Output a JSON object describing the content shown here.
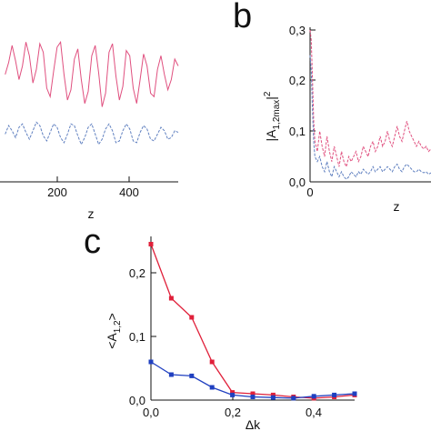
{
  "chart_data": [
    {
      "panel": "a",
      "type": "line",
      "xlabel": "z",
      "x_ticks": [
        "200",
        "400"
      ],
      "xlim": [
        0,
        500
      ],
      "series": [
        {
          "color": "#e0507f",
          "style": "solid",
          "x": [
            0,
            10,
            20,
            30,
            40,
            50,
            60,
            70,
            80,
            90,
            100,
            110,
            120,
            130,
            140,
            150,
            160,
            170,
            180,
            190,
            200,
            210,
            220,
            230,
            240,
            250,
            260,
            270,
            280,
            290,
            300,
            310,
            320,
            330,
            340,
            350,
            360,
            370,
            380,
            390,
            400,
            410,
            420,
            430,
            440,
            450,
            460,
            470,
            480,
            490,
            500
          ],
          "y": [
            0.55,
            0.62,
            0.72,
            0.63,
            0.52,
            0.6,
            0.74,
            0.66,
            0.5,
            0.58,
            0.73,
            0.68,
            0.47,
            0.42,
            0.57,
            0.71,
            0.74,
            0.55,
            0.4,
            0.46,
            0.64,
            0.7,
            0.52,
            0.38,
            0.45,
            0.66,
            0.72,
            0.56,
            0.36,
            0.44,
            0.68,
            0.73,
            0.54,
            0.4,
            0.48,
            0.69,
            0.66,
            0.47,
            0.38,
            0.52,
            0.67,
            0.6,
            0.44,
            0.42,
            0.58,
            0.66,
            0.55,
            0.46,
            0.52,
            0.64,
            0.6
          ]
        },
        {
          "color": "#6080c0",
          "style": "dashed",
          "x": [
            0,
            10,
            20,
            30,
            40,
            50,
            60,
            70,
            80,
            90,
            100,
            110,
            120,
            130,
            140,
            150,
            160,
            170,
            180,
            190,
            200,
            210,
            220,
            230,
            240,
            250,
            260,
            270,
            280,
            290,
            300,
            310,
            320,
            330,
            340,
            350,
            360,
            370,
            380,
            390,
            400,
            410,
            420,
            430,
            440,
            450,
            460,
            470,
            480,
            490,
            500
          ],
          "y": [
            0.2,
            0.25,
            0.22,
            0.18,
            0.24,
            0.26,
            0.21,
            0.17,
            0.22,
            0.27,
            0.25,
            0.19,
            0.16,
            0.21,
            0.26,
            0.24,
            0.18,
            0.15,
            0.2,
            0.26,
            0.25,
            0.19,
            0.14,
            0.18,
            0.24,
            0.26,
            0.2,
            0.14,
            0.17,
            0.23,
            0.26,
            0.22,
            0.15,
            0.16,
            0.22,
            0.26,
            0.23,
            0.16,
            0.15,
            0.21,
            0.25,
            0.23,
            0.17,
            0.16,
            0.2,
            0.24,
            0.22,
            0.17,
            0.18,
            0.22,
            0.21
          ]
        }
      ]
    },
    {
      "panel": "b",
      "type": "line",
      "title": "b",
      "xlabel": "z",
      "ylabel_html": "|A1,2max|2",
      "ylabel_main": "|A",
      "ylabel_sub": "1,2max",
      "ylabel_tail": "|",
      "ylabel_sup": "2",
      "y_ticks": [
        "0,0",
        "0,1",
        "0,2",
        "0,3"
      ],
      "x_ticks": [
        "0"
      ],
      "ylim": [
        0,
        0.3
      ],
      "xlim": [
        0,
        500
      ],
      "series": [
        {
          "color": "#e0507f",
          "style": "dashed",
          "x": [
            0,
            5,
            10,
            15,
            20,
            30,
            40,
            50,
            60,
            70,
            80,
            90,
            100,
            110,
            120,
            130,
            140,
            150,
            160,
            170,
            180,
            190,
            200,
            210,
            220,
            230,
            240,
            250,
            260,
            270,
            280,
            290,
            300,
            310,
            320,
            330,
            340,
            350,
            360,
            370,
            380,
            390,
            400,
            410,
            420,
            430,
            440,
            450,
            460,
            470,
            480,
            490,
            500
          ],
          "y": [
            0.3,
            0.28,
            0.2,
            0.12,
            0.08,
            0.06,
            0.1,
            0.07,
            0.05,
            0.09,
            0.06,
            0.04,
            0.07,
            0.05,
            0.03,
            0.06,
            0.04,
            0.03,
            0.05,
            0.04,
            0.05,
            0.06,
            0.04,
            0.05,
            0.07,
            0.06,
            0.05,
            0.07,
            0.08,
            0.06,
            0.07,
            0.09,
            0.07,
            0.08,
            0.1,
            0.08,
            0.07,
            0.09,
            0.11,
            0.09,
            0.08,
            0.1,
            0.12,
            0.1,
            0.09,
            0.08,
            0.07,
            0.08,
            0.07,
            0.065,
            0.07,
            0.06,
            0.065
          ]
        },
        {
          "color": "#6080c0",
          "style": "dashed",
          "x": [
            0,
            5,
            10,
            15,
            20,
            30,
            40,
            50,
            60,
            70,
            80,
            90,
            100,
            110,
            120,
            130,
            140,
            150,
            160,
            170,
            180,
            190,
            200,
            210,
            220,
            230,
            240,
            250,
            260,
            270,
            280,
            290,
            300,
            310,
            320,
            330,
            340,
            350,
            360,
            370,
            380,
            390,
            400,
            410,
            420,
            430,
            440,
            450,
            460,
            470,
            480,
            490,
            500
          ],
          "y": [
            0.25,
            0.22,
            0.14,
            0.08,
            0.05,
            0.04,
            0.05,
            0.03,
            0.02,
            0.04,
            0.02,
            0.01,
            0.03,
            0.02,
            0.01,
            0.02,
            0.01,
            0.005,
            0.01,
            0.02,
            0.015,
            0.01,
            0.02,
            0.015,
            0.025,
            0.02,
            0.015,
            0.02,
            0.03,
            0.02,
            0.025,
            0.03,
            0.02,
            0.025,
            0.03,
            0.025,
            0.02,
            0.03,
            0.035,
            0.025,
            0.02,
            0.03,
            0.035,
            0.03,
            0.025,
            0.02,
            0.02,
            0.025,
            0.02,
            0.018,
            0.02,
            0.015,
            0.018
          ]
        }
      ]
    },
    {
      "panel": "c",
      "type": "line",
      "title": "c",
      "xlabel": "Δk",
      "ylabel_main": "<A",
      "ylabel_sub": "1,2",
      "ylabel_tail": ">",
      "y_ticks": [
        "0,0",
        "0,1",
        "0,2"
      ],
      "x_ticks": [
        "0,0",
        "0,2",
        "0,4"
      ],
      "ylim": [
        0,
        0.26
      ],
      "xlim": [
        0,
        0.5
      ],
      "series": [
        {
          "color": "#e0203a",
          "marker": "square",
          "x": [
            0.0,
            0.05,
            0.1,
            0.15,
            0.2,
            0.25,
            0.3,
            0.35,
            0.4,
            0.45,
            0.5
          ],
          "y": [
            0.245,
            0.16,
            0.13,
            0.06,
            0.012,
            0.01,
            0.008,
            0.005,
            0.003,
            0.005,
            0.008
          ]
        },
        {
          "color": "#2040c0",
          "marker": "square",
          "x": [
            0.0,
            0.05,
            0.1,
            0.15,
            0.2,
            0.25,
            0.3,
            0.35,
            0.4,
            0.45,
            0.5
          ],
          "y": [
            0.06,
            0.04,
            0.038,
            0.02,
            0.008,
            0.005,
            0.004,
            0.003,
            0.006,
            0.008,
            0.01
          ]
        }
      ]
    }
  ]
}
